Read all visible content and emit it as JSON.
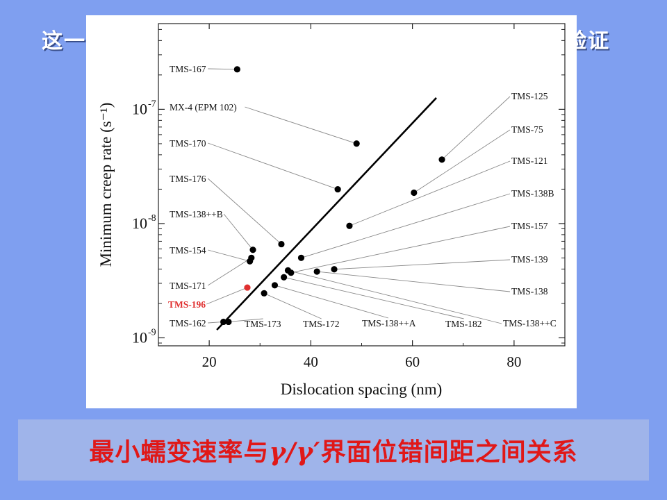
{
  "slide": {
    "top_left_text": "这一",
    "top_right_text": "验证",
    "caption_part1": "最小蠕变速率与",
    "caption_gamma": "γ/γ′",
    "caption_part2": "界面位错间距之间关系"
  },
  "colors": {
    "background": "#7f9ff0",
    "caption_box": "#9fb4ea",
    "caption_text": "#e01818",
    "highlight_point": "#e03030"
  },
  "chart_data": {
    "type": "scatter",
    "xlabel": "Dislocation spacing (nm)",
    "ylabel": "Minimum creep rate (s⁻¹)",
    "xlim": [
      10,
      90
    ],
    "ylim_exponent": [
      -9.07,
      -6.25
    ],
    "y_scale": "log",
    "x_ticks": [
      20,
      40,
      60,
      80
    ],
    "y_ticks": [
      {
        "exp": -9,
        "label": "10"
      },
      {
        "exp": -8,
        "label": "10"
      },
      {
        "exp": -7,
        "label": "10"
      }
    ],
    "y_tick_exponents": [
      "-9",
      "-8",
      "-7"
    ],
    "fit_line": {
      "x": [
        21.5,
        64.7
      ],
      "y_exp": [
        -8.93,
        -6.9
      ]
    },
    "points": [
      {
        "name": "TMS-167",
        "x": 25.5,
        "y_exp": -6.65
      },
      {
        "name": "MX-4 (EPM 102)",
        "x": 49.0,
        "y_exp": -7.3
      },
      {
        "name": "TMS-170",
        "x": 45.3,
        "y_exp": -7.7
      },
      {
        "name": "TMS-176",
        "x": 34.2,
        "y_exp": -8.18
      },
      {
        "name": "TMS-138++B",
        "x": 28.6,
        "y_exp": -8.23
      },
      {
        "name": "TMS-154",
        "x": 28.0,
        "y_exp": -8.33
      },
      {
        "name": "TMS-171",
        "x": 28.3,
        "y_exp": -8.3
      },
      {
        "name": "TMS-196",
        "x": 27.5,
        "y_exp": -8.56,
        "highlight": true
      },
      {
        "name": "TMS-162",
        "x": 22.8,
        "y_exp": -8.86
      },
      {
        "name": "TMS-173",
        "x": 23.8,
        "y_exp": -8.86
      },
      {
        "name": "TMS-172",
        "x": 30.8,
        "y_exp": -8.61
      },
      {
        "name": "TMS-138++A",
        "x": 32.9,
        "y_exp": -8.54
      },
      {
        "name": "TMS-182",
        "x": 34.7,
        "y_exp": -8.47
      },
      {
        "name": "TMS-138++C",
        "x": 35.5,
        "y_exp": -8.41
      },
      {
        "name": "TMS-138",
        "x": 41.2,
        "y_exp": -8.42
      },
      {
        "name": "TMS-139",
        "x": 44.6,
        "y_exp": -8.4
      },
      {
        "name": "TMS-157",
        "x": 36.1,
        "y_exp": -8.43
      },
      {
        "name": "TMS-138B",
        "x": 38.1,
        "y_exp": -8.3
      },
      {
        "name": "TMS-121",
        "x": 47.6,
        "y_exp": -8.02
      },
      {
        "name": "TMS-75",
        "x": 60.3,
        "y_exp": -7.73
      },
      {
        "name": "TMS-125",
        "x": 65.8,
        "y_exp": -7.44
      }
    ]
  }
}
